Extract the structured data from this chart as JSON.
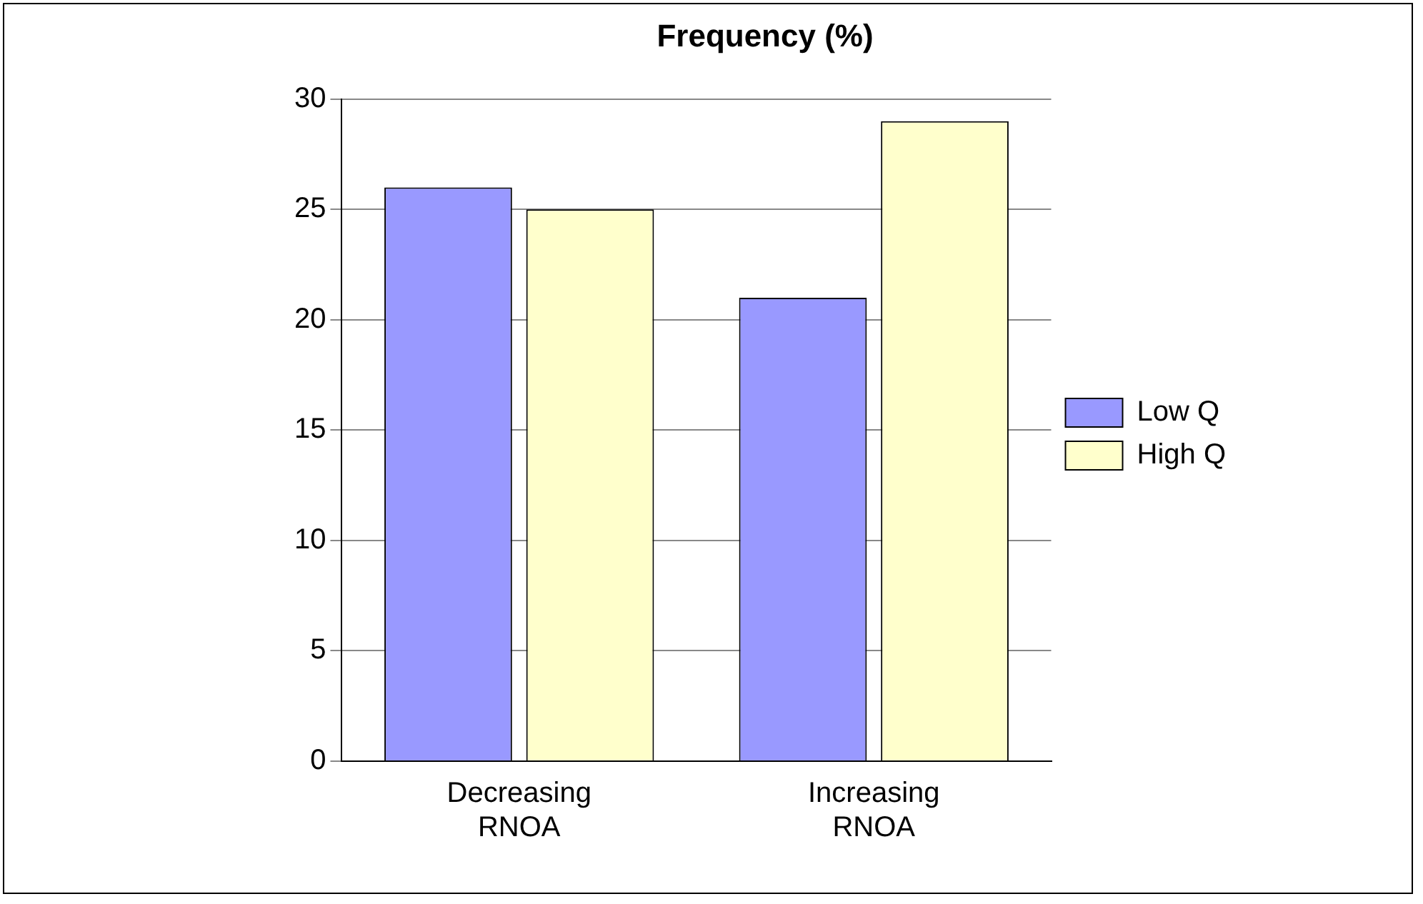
{
  "chart_data": {
    "type": "bar",
    "title": "Frequency (%)",
    "categories": [
      "Decreasing RNOA",
      "Increasing RNOA"
    ],
    "series": [
      {
        "name": "Low Q",
        "color": "#9999ff",
        "values": [
          26,
          21
        ]
      },
      {
        "name": "High Q",
        "color": "#ffffcc",
        "values": [
          25,
          29
        ]
      }
    ],
    "ylim": [
      0,
      30
    ],
    "yticks": [
      0,
      5,
      10,
      15,
      20,
      25,
      30
    ],
    "grid": "y",
    "legend": "right"
  }
}
